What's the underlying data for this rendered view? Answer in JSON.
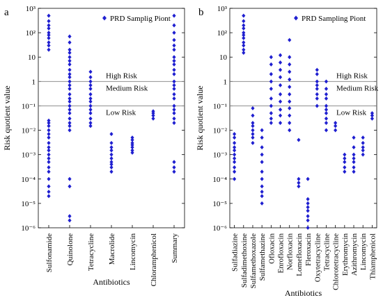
{
  "chart_data": [
    {
      "panel": "a",
      "type": "scatter",
      "ylabel": "Risk quotient value",
      "xlabel": "Antibiotics",
      "yscale": "log",
      "ylim": [
        1e-06,
        1000
      ],
      "ytick_labels": [
        "10⁻⁶",
        "10⁻⁵",
        "10⁻⁴",
        "10⁻³",
        "10⁻²",
        "10⁻¹",
        "1",
        "10",
        "10²",
        "10³"
      ],
      "legend": "PRD Samplig Piont",
      "legend_position": "top-right",
      "risk_lines": [
        1,
        0.1
      ],
      "risk_labels": [
        "High Risk",
        "Medium Risk",
        "Low Risk"
      ],
      "categories": [
        "Sulfonamide",
        "Quinolone",
        "Tetracycline",
        "Macrolide",
        "Lincomycin",
        "Chloramphenicol",
        "Summary"
      ],
      "series": [
        {
          "values": [
            [
              2e-05,
              3e-05,
              5e-05,
              0.0001,
              0.0002,
              0.0003,
              0.0005,
              0.0007,
              0.001,
              0.0015,
              0.002,
              0.003,
              0.005,
              0.007,
              0.01,
              0.015,
              0.02,
              0.025,
              20,
              30,
              40,
              60,
              80,
              100,
              150,
              200,
              300,
              500
            ],
            [
              2e-06,
              3e-06,
              5e-05,
              0.0001,
              0.01,
              0.015,
              0.02,
              0.03,
              0.05,
              0.07,
              0.1,
              0.15,
              0.2,
              0.3,
              0.5,
              0.7,
              1,
              1.5,
              2,
              3,
              5,
              7,
              10,
              15,
              20,
              40,
              70
            ],
            [
              0.015,
              0.02,
              0.03,
              0.05,
              0.07,
              0.1,
              0.15,
              0.2,
              0.3,
              0.5,
              0.7,
              1,
              1.5,
              2.5
            ],
            [
              0.0002,
              0.0003,
              0.0004,
              0.0005,
              0.0007,
              0.001,
              0.0015,
              0.002,
              0.003,
              0.007
            ],
            [
              0.0012,
              0.0015,
              0.002,
              0.0025,
              0.003,
              0.004,
              0.005
            ],
            [
              0.03,
              0.04,
              0.05,
              0.06
            ],
            [
              0.0002,
              0.0003,
              0.0005,
              0.02,
              0.03,
              0.05,
              0.07,
              0.1,
              0.2,
              0.3,
              0.5,
              0.7,
              1,
              2,
              3,
              5,
              7,
              10,
              20,
              30,
              50,
              100,
              200,
              500
            ]
          ]
        }
      ]
    },
    {
      "panel": "b",
      "type": "scatter",
      "ylabel": "Risk quotient value",
      "xlabel": "Antibiotics",
      "yscale": "log",
      "ylim": [
        1e-06,
        1000
      ],
      "ytick_labels": [
        "10⁻⁶",
        "10⁻⁵",
        "10⁻⁴",
        "10⁻³",
        "10⁻²",
        "10⁻¹",
        "1",
        "10",
        "10²",
        "10³"
      ],
      "legend": "PRD Sampling Piont",
      "legend_position": "top-right",
      "risk_lines": [
        1,
        0.1
      ],
      "risk_labels": [
        "High Risk",
        "Medium Risk",
        "Low Risk"
      ],
      "categories": [
        "Sulfadiazine",
        "Sulfadimethoxine",
        "Sulfamethoxazole",
        "Sulfamethazine",
        "Ofloxacin",
        "Enrofloxacin",
        "Norfloxacin",
        "Lomefloxacin",
        "Fleroxacin",
        "Oxytetracycline",
        "Tetracycline",
        "Chlorotetracycline",
        "Erythromycin",
        "Azithromycin",
        "Lincomycin",
        "Thiamphenicol"
      ],
      "series": [
        {
          "values": [
            [
              0.0001,
              0.0002,
              0.0003,
              0.0005,
              0.0007,
              0.001,
              0.0015,
              0.002,
              0.003,
              0.005,
              0.007
            ],
            [
              15,
              20,
              30,
              40,
              60,
              80,
              100,
              150,
              200,
              300,
              500
            ],
            [
              0.003,
              0.005,
              0.007,
              0.01,
              0.015,
              0.02,
              0.04,
              0.08
            ],
            [
              1e-05,
              2e-05,
              3e-05,
              5e-05,
              0.0001,
              0.0002,
              0.0005,
              0.001,
              0.002,
              0.005,
              0.01
            ],
            [
              0.02,
              0.03,
              0.05,
              0.1,
              0.2,
              0.5,
              1,
              2,
              5,
              10
            ],
            [
              0.02,
              0.04,
              0.07,
              0.15,
              0.3,
              0.7,
              1.5,
              3,
              6,
              12
            ],
            [
              0.01,
              0.02,
              0.04,
              0.08,
              0.15,
              0.3,
              0.6,
              1.2,
              2.5,
              5,
              10,
              50
            ],
            [
              5e-05,
              7e-05,
              0.0001,
              0.004
            ],
            [
              1e-06,
              2e-06,
              3e-06,
              5e-06,
              7e-06,
              1e-05,
              1.5e-05,
              0.0001
            ],
            [
              0.1,
              0.2,
              0.3,
              0.5,
              0.7,
              1,
              2,
              3
            ],
            [
              0.01,
              0.02,
              0.03,
              0.05,
              0.07,
              0.1,
              0.2,
              0.3,
              0.5,
              1
            ],
            [
              0.01,
              0.015,
              0.02
            ],
            [
              0.0002,
              0.0003,
              0.0005,
              0.0007,
              0.001
            ],
            [
              0.0002,
              0.0003,
              0.0005,
              0.0007,
              0.001,
              0.002,
              0.005
            ],
            [
              0.001,
              0.0015,
              0.002,
              0.003,
              0.005
            ],
            [
              0.03,
              0.04,
              0.05
            ]
          ]
        }
      ]
    }
  ]
}
